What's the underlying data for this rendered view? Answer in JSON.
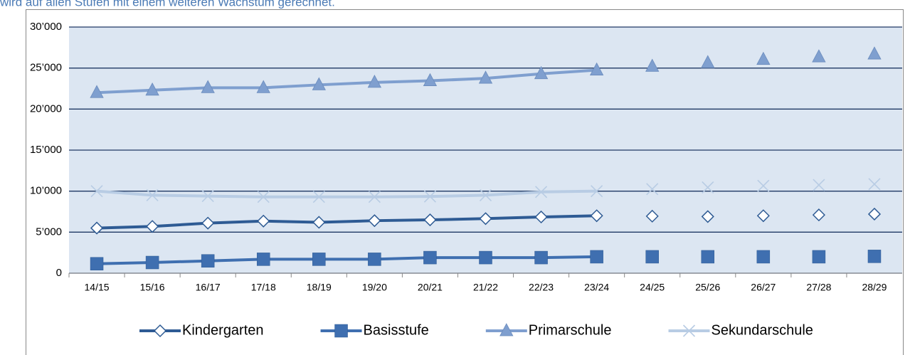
{
  "intro_text": "wird auf allen Stufen mit einem weiteren Wachstum gerechnet.",
  "chart_data": {
    "type": "line",
    "categories": [
      "14/15",
      "15/16",
      "16/17",
      "17/18",
      "18/19",
      "19/20",
      "20/21",
      "21/22",
      "22/23",
      "23/24",
      "24/25",
      "25/26",
      "26/27",
      "27/28",
      "28/29"
    ],
    "solid_line_count": 10,
    "ylim": [
      0,
      30000
    ],
    "yticks": [
      0,
      {
        "value": 5000,
        "label": "5’000"
      },
      {
        "value": 10000,
        "label": "10’000"
      },
      {
        "value": 15000,
        "label": "15’000"
      },
      {
        "value": 20000,
        "label": "20’000"
      },
      {
        "value": 25000,
        "label": "25’000"
      },
      {
        "value": 30000,
        "label": "30’000"
      }
    ],
    "grid": true,
    "legend": "bottom",
    "series": [
      {
        "name": "Kindergarten",
        "color": "#2e5b94",
        "marker": "diamond",
        "values": [
          5500,
          5700,
          6100,
          6350,
          6200,
          6400,
          6500,
          6650,
          6850,
          7000,
          6950,
          6900,
          7000,
          7100,
          7200
        ]
      },
      {
        "name": "Basisstufe",
        "color": "#3f6fb0",
        "marker": "square",
        "values": [
          1150,
          1300,
          1500,
          1700,
          1700,
          1700,
          1900,
          1900,
          1900,
          2000,
          2000,
          2000,
          2000,
          2000,
          2050
        ]
      },
      {
        "name": "Primarschule",
        "color": "#7f9fcf",
        "marker": "triangle",
        "values": [
          22000,
          22300,
          22600,
          22600,
          22950,
          23250,
          23450,
          23750,
          24300,
          24750,
          25200,
          25650,
          26050,
          26350,
          26700
        ]
      },
      {
        "name": "Sekundarschule",
        "color": "#b8cce4",
        "marker": "x",
        "values": [
          10000,
          9500,
          9400,
          9300,
          9300,
          9300,
          9350,
          9500,
          9900,
          10000,
          10250,
          10450,
          10650,
          10750,
          10850
        ]
      }
    ]
  }
}
